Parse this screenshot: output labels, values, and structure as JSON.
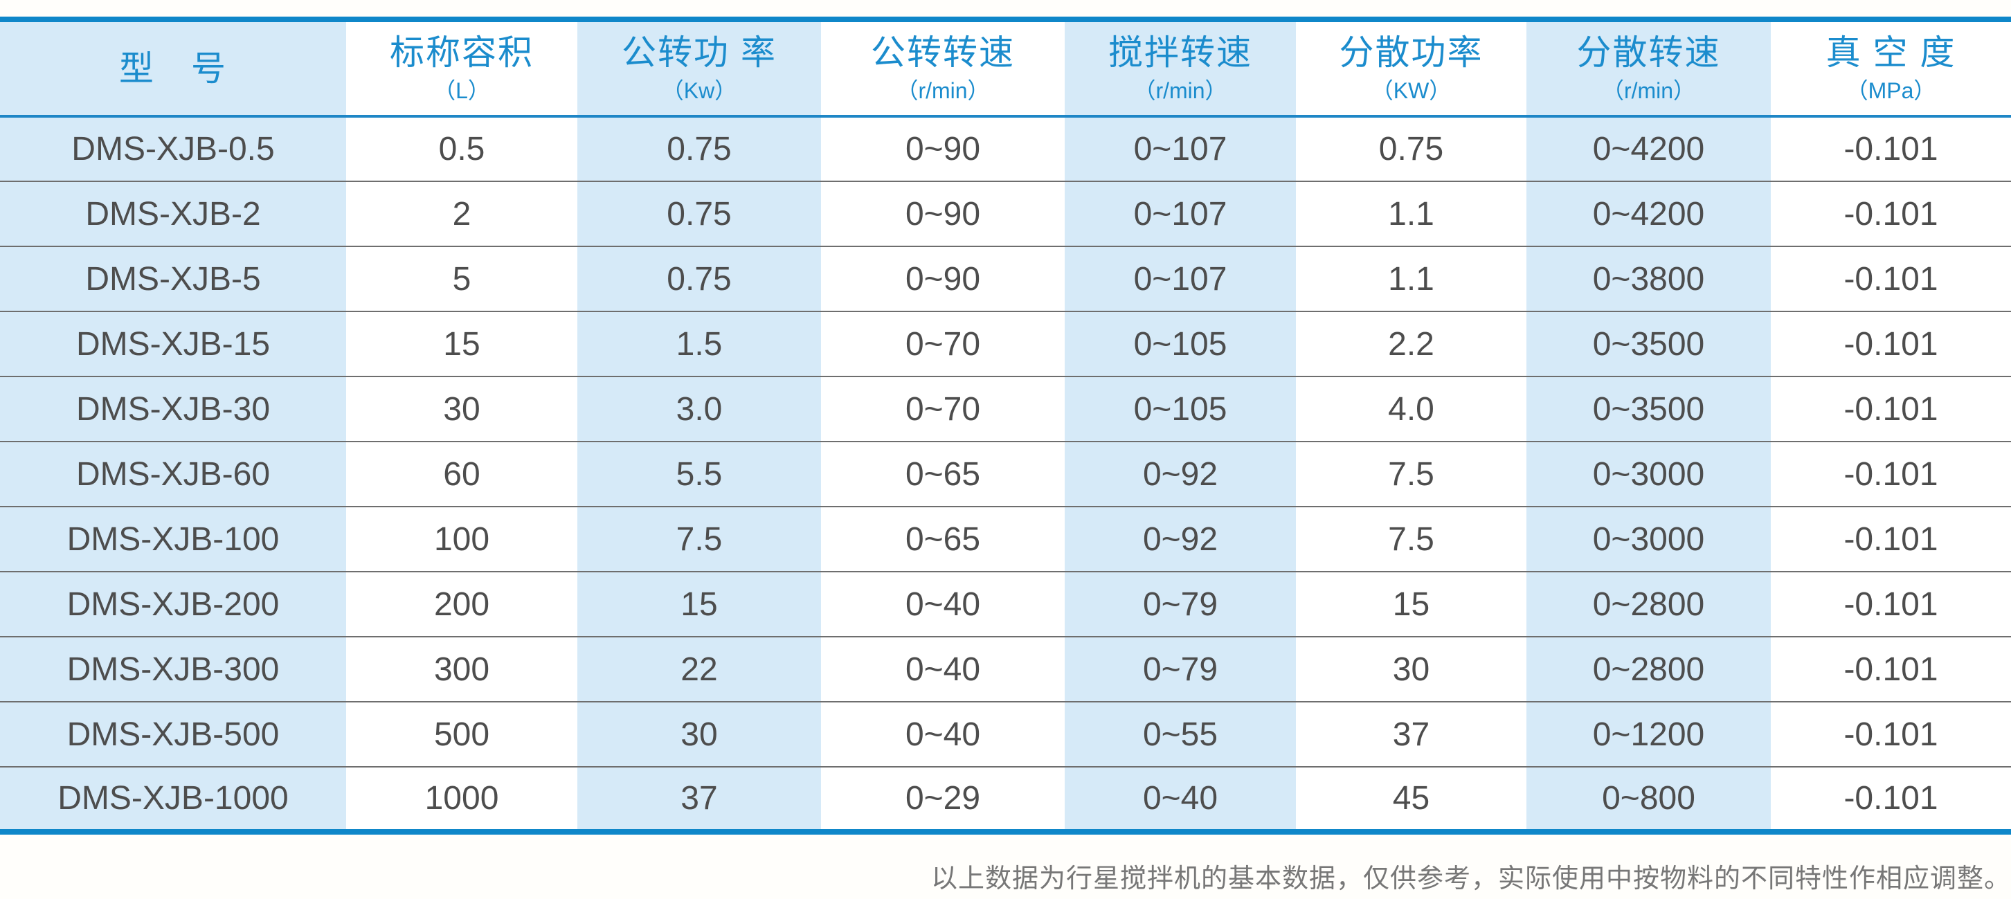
{
  "chart_data": {
    "type": "table",
    "title": "",
    "columns": [
      {
        "title": "型　号",
        "unit": ""
      },
      {
        "title": "标称容积",
        "unit": "（L）"
      },
      {
        "title": "公转功 率",
        "unit": "（Kw）"
      },
      {
        "title": "公转转速",
        "unit": "（r/min）"
      },
      {
        "title": "搅拌转速",
        "unit": "（r/min）"
      },
      {
        "title": "分散功率",
        "unit": "（KW）"
      },
      {
        "title": "分散转速",
        "unit": "（r/min）"
      },
      {
        "title": "真 空 度",
        "unit": "（MPa）"
      }
    ],
    "rows": [
      [
        "DMS-XJB-0.5",
        "0.5",
        "0.75",
        "0~90",
        "0~107",
        "0.75",
        "0~4200",
        "-0.101"
      ],
      [
        "DMS-XJB-2",
        "2",
        "0.75",
        "0~90",
        "0~107",
        "1.1",
        "0~4200",
        "-0.101"
      ],
      [
        "DMS-XJB-5",
        "5",
        "0.75",
        "0~90",
        "0~107",
        "1.1",
        "0~3800",
        "-0.101"
      ],
      [
        "DMS-XJB-15",
        "15",
        "1.5",
        "0~70",
        "0~105",
        "2.2",
        "0~3500",
        "-0.101"
      ],
      [
        "DMS-XJB-30",
        "30",
        "3.0",
        "0~70",
        "0~105",
        "4.0",
        "0~3500",
        "-0.101"
      ],
      [
        "DMS-XJB-60",
        "60",
        "5.5",
        "0~65",
        "0~92",
        "7.5",
        "0~3000",
        "-0.101"
      ],
      [
        "DMS-XJB-100",
        "100",
        "7.5",
        "0~65",
        "0~92",
        "7.5",
        "0~3000",
        "-0.101"
      ],
      [
        "DMS-XJB-200",
        "200",
        "15",
        "0~40",
        "0~79",
        "15",
        "0~2800",
        "-0.101"
      ],
      [
        "DMS-XJB-300",
        "300",
        "22",
        "0~40",
        "0~79",
        "30",
        "0~2800",
        "-0.101"
      ],
      [
        "DMS-XJB-500",
        "500",
        "30",
        "0~40",
        "0~55",
        "37",
        "0~1200",
        "-0.101"
      ],
      [
        "DMS-XJB-1000",
        "1000",
        "37",
        "0~29",
        "0~40",
        "45",
        "0~800",
        "-0.101"
      ]
    ],
    "layout": {
      "grid": "horizontal-separators-only",
      "stripe_direction": "vertical",
      "striped_columns": [
        1,
        3,
        5,
        7
      ]
    }
  },
  "footer": {
    "note": "以上数据为行星搅拌机的基本数据，仅供参考，实际使用中按物料的不同特性作相应调整。"
  },
  "colors": {
    "accent_border_blue": "#0f87c9",
    "header_text_blue": "#1b8ccd",
    "stripe_light_blue": "#d6eaf8",
    "body_text_gray": "#4d4d4d",
    "row_separator_gray": "#6e6e6e",
    "footnote_gray": "#777777"
  }
}
